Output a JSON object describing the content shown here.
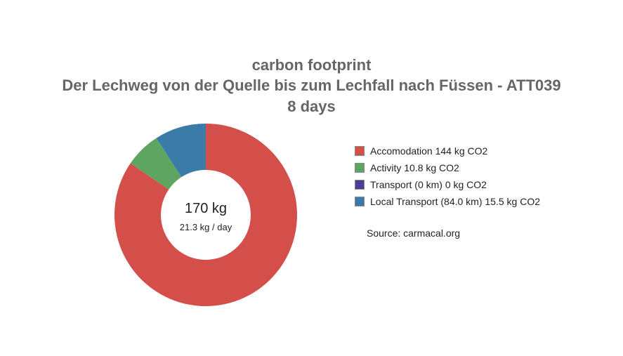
{
  "chart_data": {
    "type": "pie",
    "variant": "donut",
    "title": [
      "carbon footprint",
      "Der Lechweg von der Quelle bis zum Lechfall nach Füssen - ATT039",
      "8 days"
    ],
    "series": [
      {
        "name": "Accomodation 144 kg CO2",
        "value": 144,
        "color": "#d44e4a"
      },
      {
        "name": "Activity 10.8 kg CO2",
        "value": 10.8,
        "color": "#5ea562"
      },
      {
        "name": "Transport (0 km) 0 kg CO2",
        "value": 0,
        "color": "#4e3d96"
      },
      {
        "name": "Local Transport (84.0 km) 15.5 kg CO2",
        "value": 15.5,
        "color": "#3a7ba8"
      }
    ],
    "center_total": "170 kg",
    "center_per_day": "21.3 kg / day",
    "legend_position": "right",
    "source": "Source: carmacal.org"
  }
}
